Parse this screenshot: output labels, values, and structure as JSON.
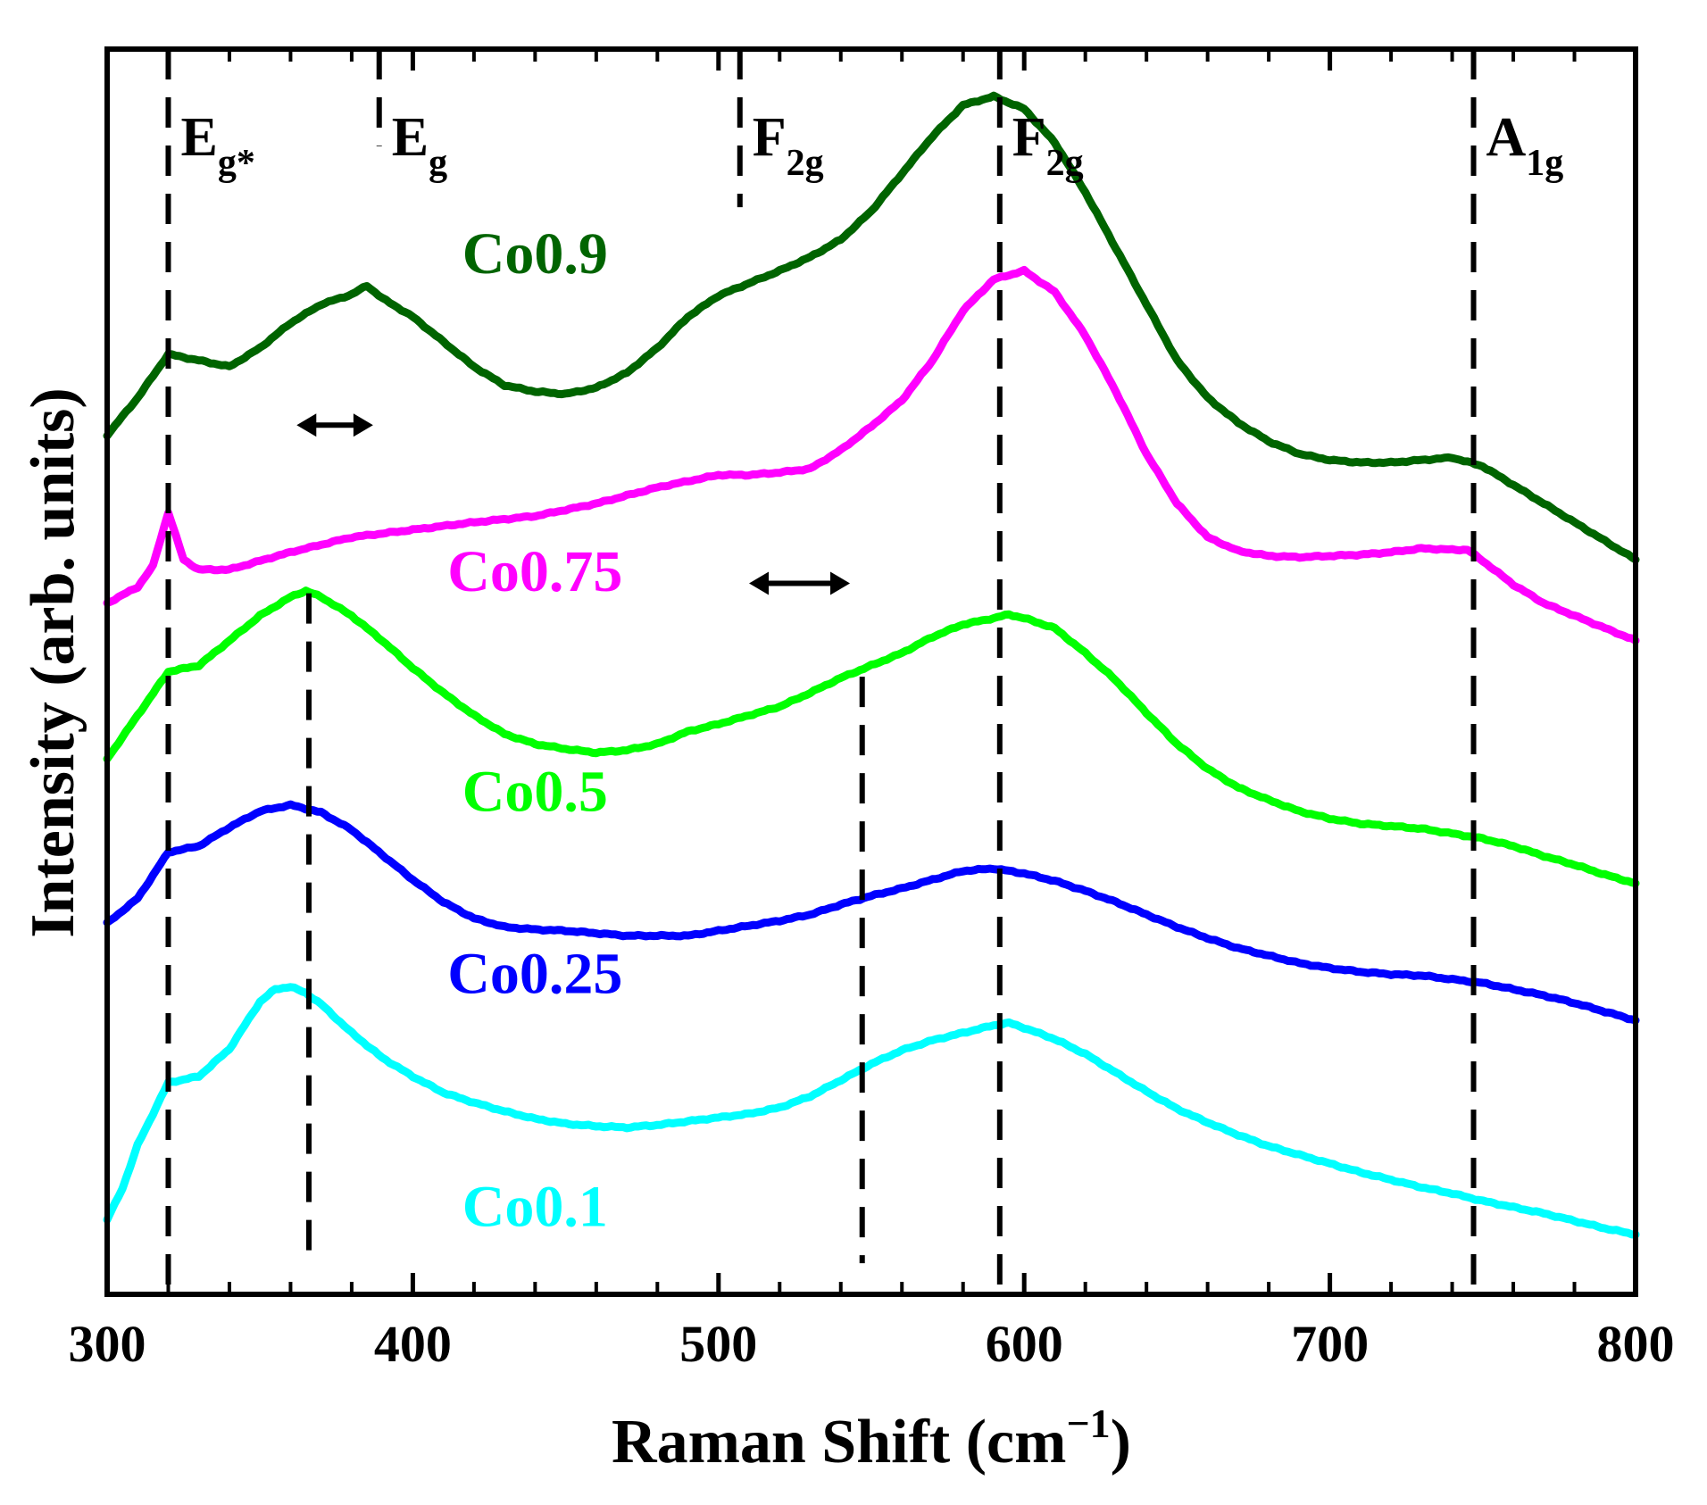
{
  "chart_data": {
    "type": "line",
    "title": "",
    "xlabel": "Raman Shift (cm",
    "xlabel_sup": "−1",
    "xlabel_close": ")",
    "ylabel": "Intensity (arb. units)",
    "xlim": [
      300,
      800
    ],
    "ylim": [
      0,
      100
    ],
    "x_ticks": [
      300,
      400,
      500,
      600,
      700,
      800
    ],
    "x_minor_step": 20,
    "grid": false,
    "legend": "none (series labelled inline)",
    "series": [
      {
        "name": "Co0.9",
        "color": "#006400",
        "label_x": 440,
        "label_y": 82.0,
        "x": [
          300,
          310,
          320,
          330,
          340,
          350,
          360,
          370,
          380,
          385,
          390,
          400,
          410,
          420,
          430,
          440,
          450,
          460,
          470,
          480,
          490,
          500,
          510,
          520,
          530,
          540,
          550,
          560,
          570,
          580,
          590,
          600,
          610,
          620,
          630,
          640,
          650,
          660,
          670,
          680,
          690,
          700,
          710,
          720,
          730,
          740,
          750,
          760,
          770,
          780,
          790,
          800
        ],
        "values": [
          69,
          72,
          75.5,
          75,
          74.5,
          76,
          78,
          79.5,
          80.3,
          81,
          80,
          78.5,
          76.5,
          74.5,
          73,
          72.5,
          72.3,
          72.8,
          74,
          76,
          78.5,
          80.2,
          81.2,
          82.2,
          83.3,
          84.7,
          87,
          90,
          93,
          95.5,
          96.2,
          95.2,
          92.5,
          88.5,
          84,
          79.5,
          75,
          72,
          70,
          68.5,
          67.5,
          67,
          66.8,
          66.8,
          67,
          67.2,
          66.5,
          65,
          63.5,
          62,
          60.5,
          59
        ]
      },
      {
        "name": "Co0.75",
        "color": "#ff00ff",
        "label_x": 440,
        "label_y": 56.5,
        "x": [
          300,
          310,
          315,
          320,
          325,
          330,
          340,
          350,
          360,
          370,
          380,
          400,
          420,
          440,
          460,
          480,
          500,
          510,
          520,
          530,
          540,
          550,
          560,
          570,
          580,
          590,
          600,
          610,
          620,
          630,
          640,
          650,
          660,
          670,
          680,
          690,
          700,
          710,
          720,
          730,
          740,
          745,
          750,
          760,
          770,
          780,
          790,
          800
        ],
        "values": [
          55.5,
          56.8,
          58.5,
          62.8,
          59,
          58.2,
          58.2,
          58.9,
          59.6,
          60.2,
          60.8,
          61.4,
          62,
          62.5,
          63.5,
          64.8,
          65.8,
          65.8,
          66,
          66.3,
          67.8,
          69.7,
          71.8,
          75,
          79,
          81.5,
          82.2,
          80.5,
          77,
          72.5,
          67.5,
          63.5,
          60.8,
          59.7,
          59.3,
          59.2,
          59.3,
          59.4,
          59.6,
          59.9,
          59.8,
          59.8,
          58.9,
          57,
          55.5,
          54.5,
          53.5,
          52.5
        ]
      },
      {
        "name": "Co0.5",
        "color": "#00ff00",
        "label_x": 440,
        "label_y": 38.8,
        "x": [
          300,
          310,
          320,
          330,
          340,
          350,
          360,
          365,
          370,
          380,
          390,
          400,
          410,
          420,
          430,
          440,
          450,
          460,
          470,
          480,
          490,
          500,
          510,
          520,
          530,
          540,
          550,
          560,
          570,
          580,
          590,
          595,
          600,
          610,
          620,
          630,
          640,
          650,
          660,
          670,
          680,
          690,
          700,
          710,
          720,
          730,
          740,
          750,
          760,
          770,
          780,
          790,
          800
        ],
        "values": [
          43,
          46.5,
          50,
          50.5,
          52.5,
          54.5,
          56,
          56.5,
          56,
          54.5,
          52.5,
          50.3,
          48.3,
          46.5,
          45,
          44.2,
          43.8,
          43.5,
          43.7,
          44.2,
          45.2,
          45.8,
          46.5,
          47.2,
          48.3,
          49.5,
          50.5,
          51.5,
          52.8,
          53.8,
          54.3,
          54.6,
          54.3,
          53.5,
          51.5,
          49.3,
          46.7,
          44.2,
          42.2,
          40.7,
          39.7,
          38.8,
          38.2,
          37.8,
          37.6,
          37.4,
          37,
          36.6,
          36,
          35.2,
          34.5,
          33.7,
          33
        ]
      },
      {
        "name": "Co0.25",
        "color": "#0000ff",
        "label_x": 440,
        "label_y": 24.2,
        "x": [
          300,
          310,
          320,
          330,
          340,
          350,
          360,
          370,
          380,
          390,
          400,
          410,
          420,
          430,
          440,
          450,
          460,
          470,
          480,
          490,
          500,
          510,
          520,
          530,
          540,
          550,
          560,
          570,
          580,
          590,
          600,
          610,
          620,
          630,
          640,
          650,
          660,
          670,
          680,
          690,
          700,
          710,
          720,
          730,
          740,
          750,
          760,
          770,
          780,
          790,
          800
        ],
        "values": [
          29.8,
          31.8,
          35.5,
          36,
          37.5,
          38.8,
          39.3,
          38.7,
          37.3,
          35.3,
          33.3,
          31.5,
          30.2,
          29.5,
          29.3,
          29.2,
          29,
          28.8,
          28.8,
          28.8,
          29.2,
          29.6,
          30,
          30.5,
          31.3,
          32,
          32.6,
          33.3,
          34,
          34.2,
          33.8,
          33.2,
          32.4,
          31.5,
          30.5,
          29.5,
          28.6,
          27.8,
          27.2,
          26.6,
          26.2,
          25.9,
          25.7,
          25.6,
          25.3,
          25,
          24.5,
          24,
          23.4,
          22.7,
          22
        ]
      },
      {
        "name": "Co0.1",
        "color": "#00ffff",
        "label_x": 440,
        "label_y": 5.5,
        "x": [
          300,
          305,
          310,
          315,
          320,
          330,
          340,
          350,
          355,
          360,
          365,
          370,
          380,
          390,
          400,
          410,
          420,
          430,
          440,
          450,
          460,
          470,
          480,
          490,
          500,
          510,
          520,
          530,
          540,
          550,
          560,
          570,
          580,
          590,
          595,
          600,
          610,
          620,
          630,
          640,
          650,
          660,
          670,
          680,
          690,
          700,
          710,
          720,
          730,
          740,
          750,
          760,
          770,
          780,
          790,
          800
        ],
        "values": [
          6,
          8.5,
          12,
          14.5,
          17,
          17.5,
          19.7,
          23.5,
          24.5,
          24.7,
          24.2,
          23.3,
          21,
          19,
          17.5,
          16.2,
          15.4,
          14.7,
          14.1,
          13.7,
          13.5,
          13.4,
          13.6,
          13.9,
          14.2,
          14.5,
          15,
          15.9,
          17.2,
          18.5,
          19.6,
          20.4,
          21,
          21.6,
          21.8,
          21.4,
          20.5,
          19.3,
          17.8,
          16.3,
          14.9,
          13.8,
          12.8,
          11.9,
          11.2,
          10.5,
          9.8,
          9.2,
          8.6,
          8.1,
          7.5,
          7,
          6.5,
          5.9,
          5.3,
          4.8
        ]
      }
    ],
    "annotations": [
      {
        "text": "E",
        "sub": "g*",
        "x": 320,
        "line_top": 100,
        "line_bottom": 0
      },
      {
        "text": "E",
        "sub": "g",
        "x": 389,
        "line_top": 100,
        "line_bottom": 92.2
      },
      {
        "text": "F",
        "sub": "2g",
        "x": 507,
        "line_top": 100,
        "line_bottom": 87.3
      },
      {
        "text": "F",
        "sub": "2g",
        "x": 592,
        "line_top": 100,
        "line_bottom": 0
      },
      {
        "text": "A",
        "sub": "1g",
        "x": 747,
        "line_top": 100,
        "line_bottom": 0
      }
    ],
    "extra_dashed_lines": [
      {
        "x": 366,
        "line_top": 56.3,
        "line_bottom": 2.5
      },
      {
        "x": 547,
        "line_top": 49.6,
        "line_bottom": 2.5
      }
    ],
    "double_arrows": [
      {
        "x1": 362,
        "x2": 387,
        "y": 69.8
      },
      {
        "x1": 510,
        "x2": 543,
        "y": 57.1
      }
    ]
  }
}
